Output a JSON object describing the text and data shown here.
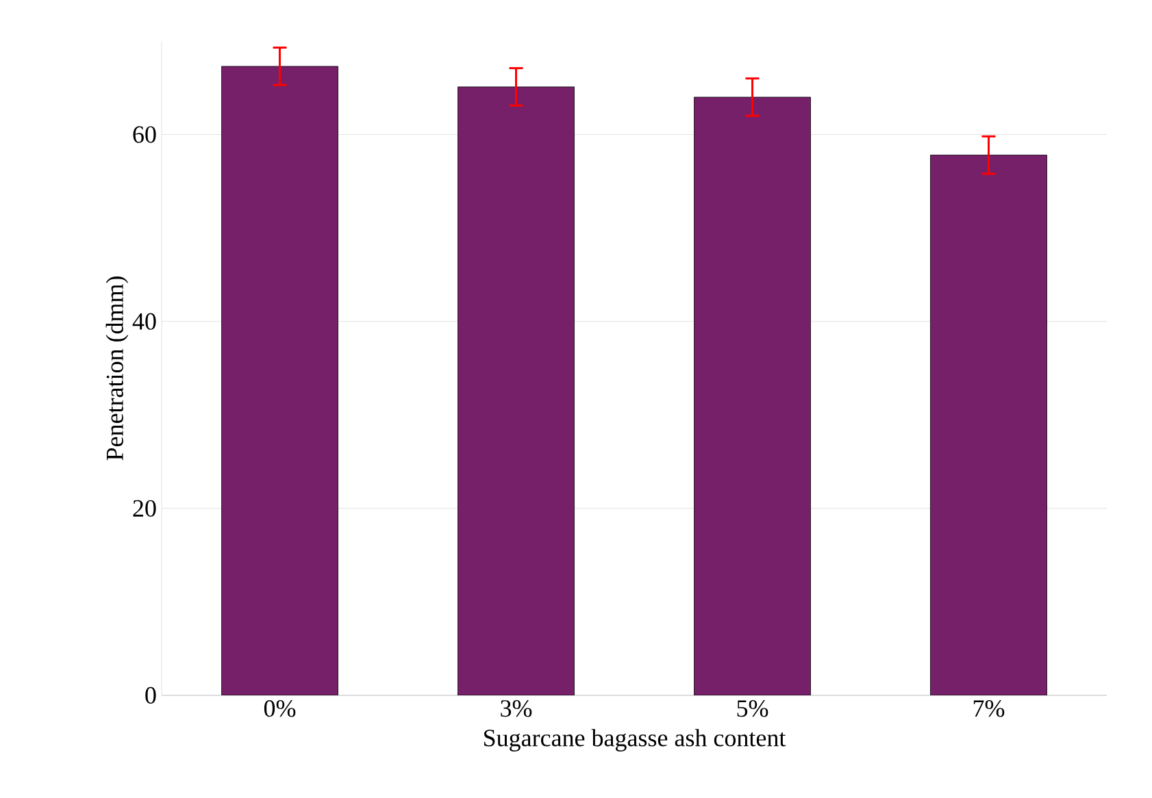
{
  "chart_data": {
    "type": "bar",
    "xlabel": "Sugarcane bagasse ash content",
    "ylabel": "Penetration (dmm)",
    "categories": [
      "0%",
      "3%",
      "5%",
      "7%"
    ],
    "values": [
      67.3,
      65.1,
      64.0,
      57.8
    ],
    "errors": [
      2,
      2,
      2,
      2
    ],
    "color": "#76206a",
    "ylim": [
      0,
      70
    ],
    "yticks": [
      0,
      20,
      40,
      60
    ],
    "grid": "y"
  }
}
